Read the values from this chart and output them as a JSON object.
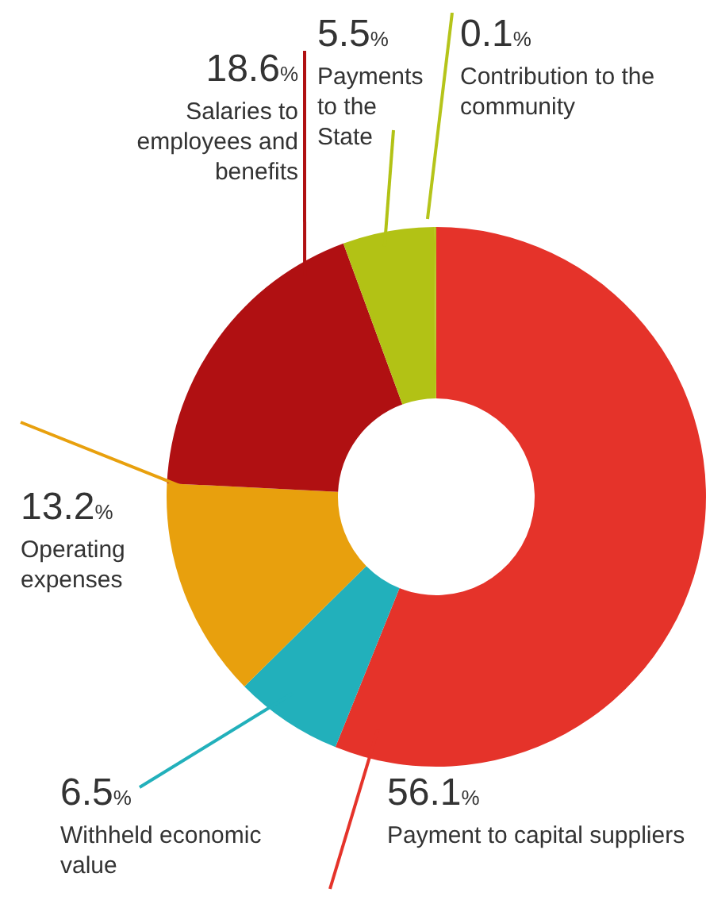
{
  "chart_data": {
    "type": "donut",
    "categories": [
      "Payment to capital suppliers",
      "Withheld economic value",
      "Operating expenses",
      "Salaries to employees and benefits",
      "Payments to the State",
      "Contribution to the community"
    ],
    "values": [
      56.1,
      6.5,
      13.2,
      18.6,
      5.5,
      0.1
    ],
    "value_labels": [
      "56.1%",
      "6.5%",
      "13.2%",
      "18.6%",
      "5.5%",
      "0.1%"
    ],
    "colors": [
      "#e5332a",
      "#22b0bb",
      "#e8a00d",
      "#b01012",
      "#b2c215",
      "#b5c41a"
    ]
  }
}
